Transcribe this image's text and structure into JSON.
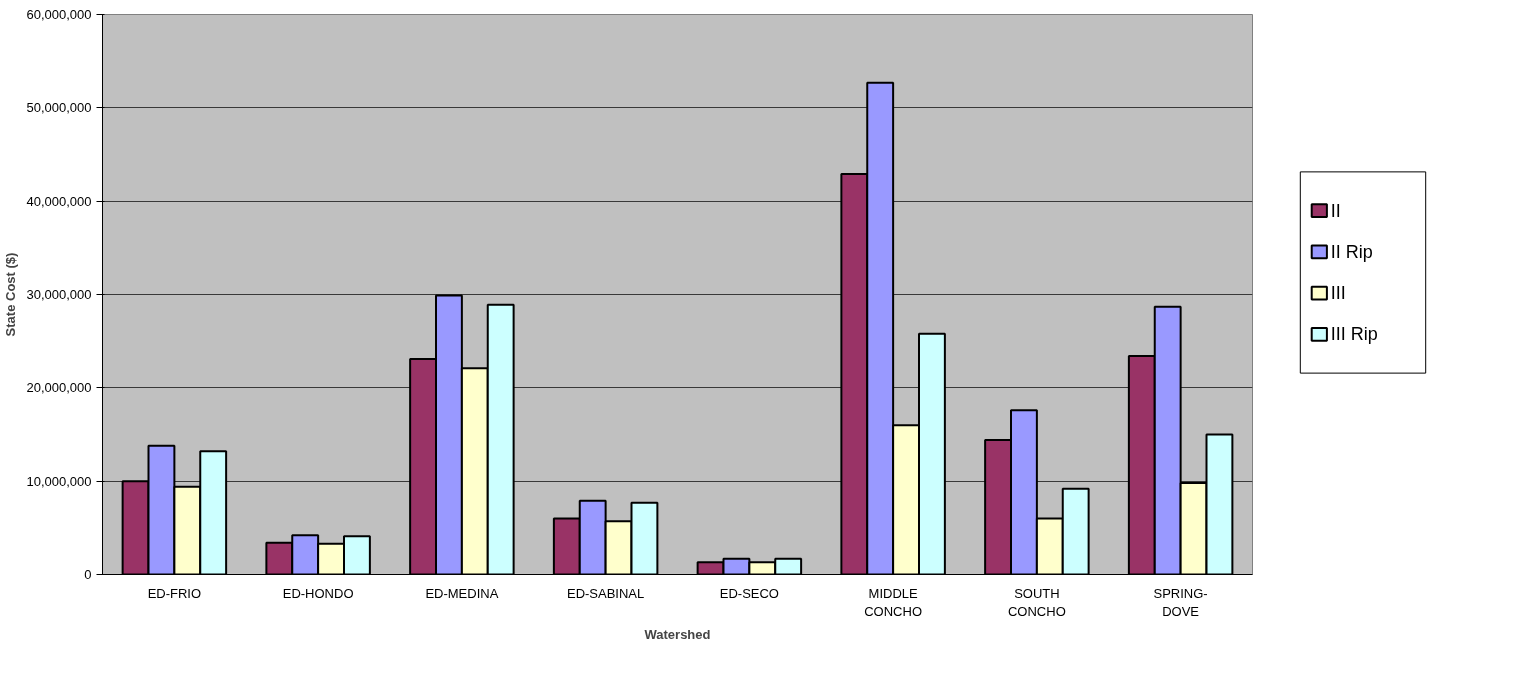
{
  "chart_data": {
    "type": "bar",
    "xlabel": "Watershed",
    "ylabel": "State Cost ($)",
    "categories": [
      "ED-FRIO",
      "ED-HONDO",
      "ED-MEDINA",
      "ED-SABINAL",
      "ED-SECO",
      "MIDDLE\nCONCHO",
      "SOUTH\nCONCHO",
      "SPRING-\nDOVE"
    ],
    "series": [
      {
        "name": "II",
        "color": "#993366",
        "values": [
          10000000,
          3400000,
          23100000,
          6000000,
          1300000,
          42900000,
          14400000,
          23400000
        ]
      },
      {
        "name": "II Rip",
        "color": "#9999ff",
        "values": [
          13800000,
          4200000,
          29900000,
          7900000,
          1700000,
          52700000,
          17600000,
          28700000
        ]
      },
      {
        "name": "III",
        "color": "#ffffcc",
        "values": [
          9400000,
          3300000,
          22100000,
          5700000,
          1300000,
          16000000,
          6000000,
          9800000
        ]
      },
      {
        "name": "III Rip",
        "color": "#ccffff",
        "values": [
          13200000,
          4100000,
          28900000,
          7700000,
          1700000,
          25800000,
          9200000,
          15000000
        ]
      }
    ],
    "ylim": [
      0,
      60000000
    ],
    "yticks": [
      0,
      {
        "value": 10000000,
        "label": "10,000,000"
      },
      {
        "value": 20000000,
        "label": "20,000,000"
      },
      {
        "value": 30000000,
        "label": "30,000,000"
      },
      {
        "value": 40000000,
        "label": "40,000,000"
      },
      {
        "value": 50000000,
        "label": "50,000,000"
      },
      {
        "value": 60000000,
        "label": "60,000,000"
      }
    ],
    "grid": "y",
    "legend": "right"
  }
}
